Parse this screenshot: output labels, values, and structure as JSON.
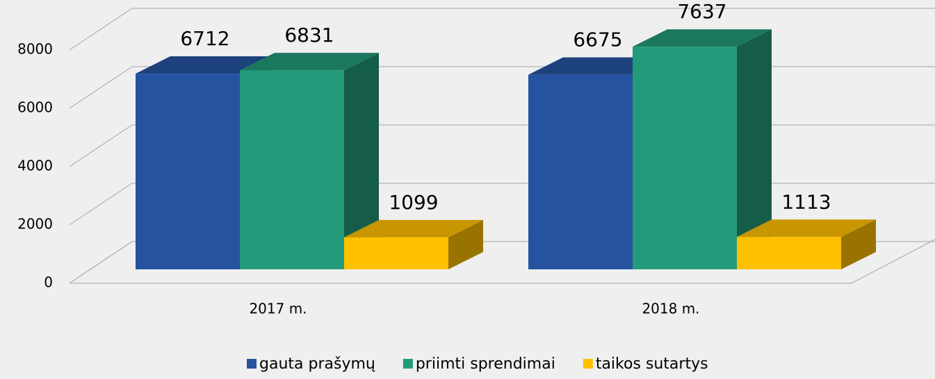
{
  "chart_data": {
    "type": "bar3d",
    "categories": [
      "2017 m.",
      "2018 m."
    ],
    "series": [
      {
        "name": "gauta prašymų",
        "color": "#2553a0",
        "values": [
          6712,
          6675
        ]
      },
      {
        "name": "priimti sprendimai",
        "color": "#239a7a",
        "values": [
          6831,
          7637
        ]
      },
      {
        "name": "taikos sutartys",
        "color": "#ffc000",
        "values": [
          1099,
          1113
        ]
      }
    ],
    "ylim": [
      0,
      8000
    ],
    "yticks": [
      0,
      2000,
      4000,
      6000,
      8000
    ],
    "grid": true,
    "legend": "bottom"
  }
}
